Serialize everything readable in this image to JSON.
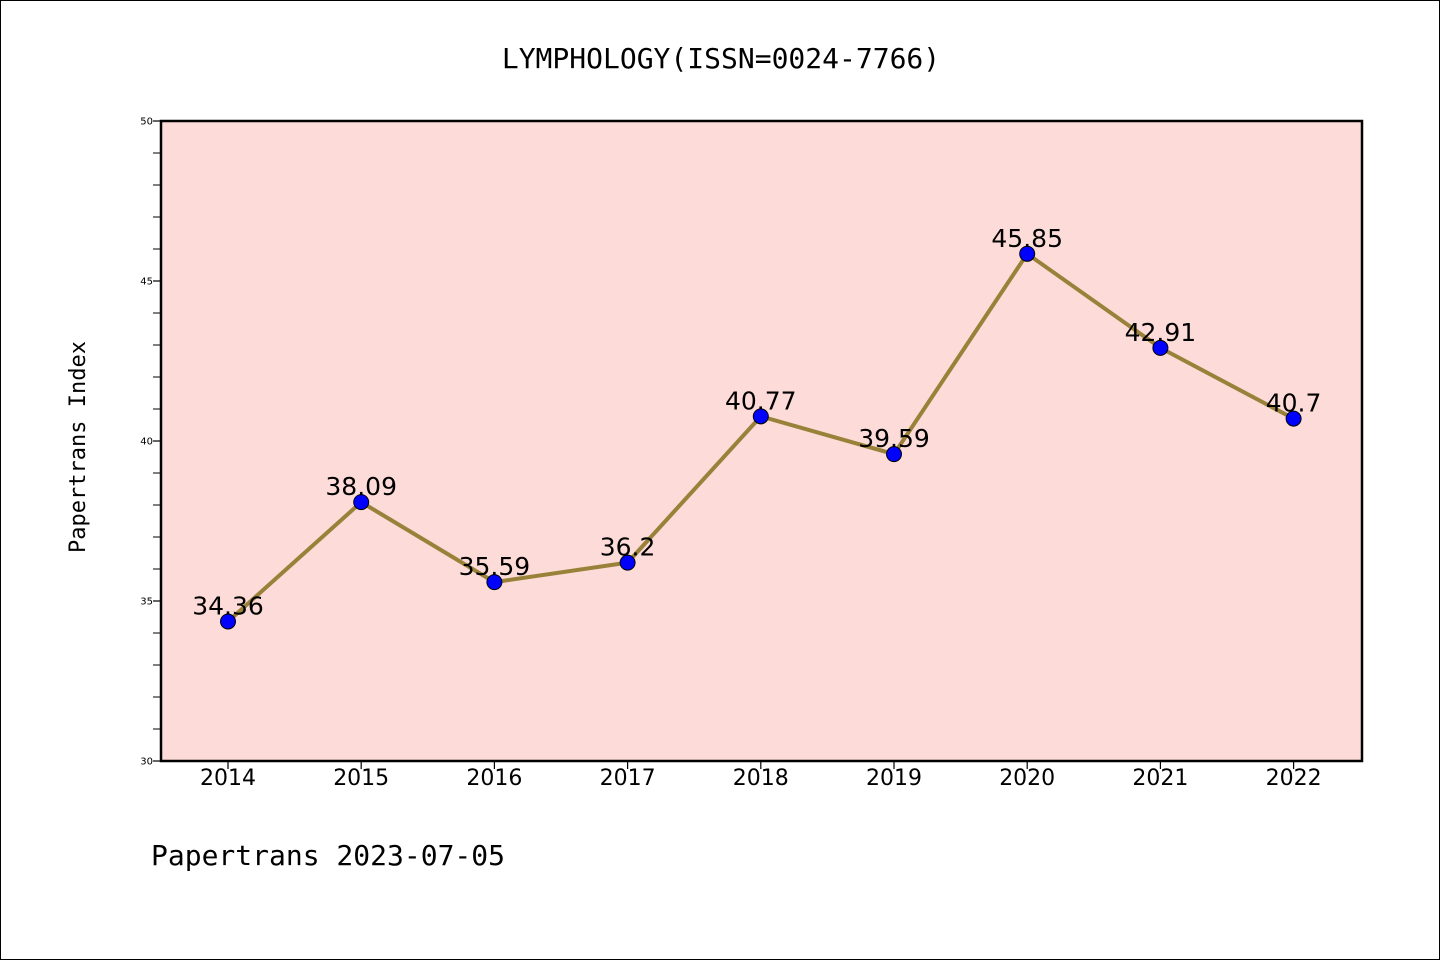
{
  "chart_data": {
    "type": "line",
    "title": "LYMPHOLOGY(ISSN=0024-7766)",
    "ylabel": "Papertrans Index",
    "xlabel": "",
    "footer": "Papertrans 2023-07-05",
    "categories": [
      "2014",
      "2015",
      "2016",
      "2017",
      "2018",
      "2019",
      "2020",
      "2021",
      "2022"
    ],
    "values": [
      34.36,
      38.09,
      35.59,
      36.2,
      40.77,
      39.59,
      45.85,
      42.91,
      40.7
    ],
    "data_labels": [
      "34.36",
      "38.09",
      "35.59",
      "36.2",
      "40.77",
      "39.59",
      "45.85",
      "42.91",
      "40.7"
    ],
    "ylim": [
      30,
      50
    ],
    "yticks": [
      "30",
      "35",
      "40",
      "45",
      "50"
    ],
    "grid": false,
    "legend": "none",
    "colors": {
      "plot_background": "#fddbd8",
      "line": "#9a8139",
      "marker": "#0000ff",
      "axis": "#000000"
    }
  }
}
